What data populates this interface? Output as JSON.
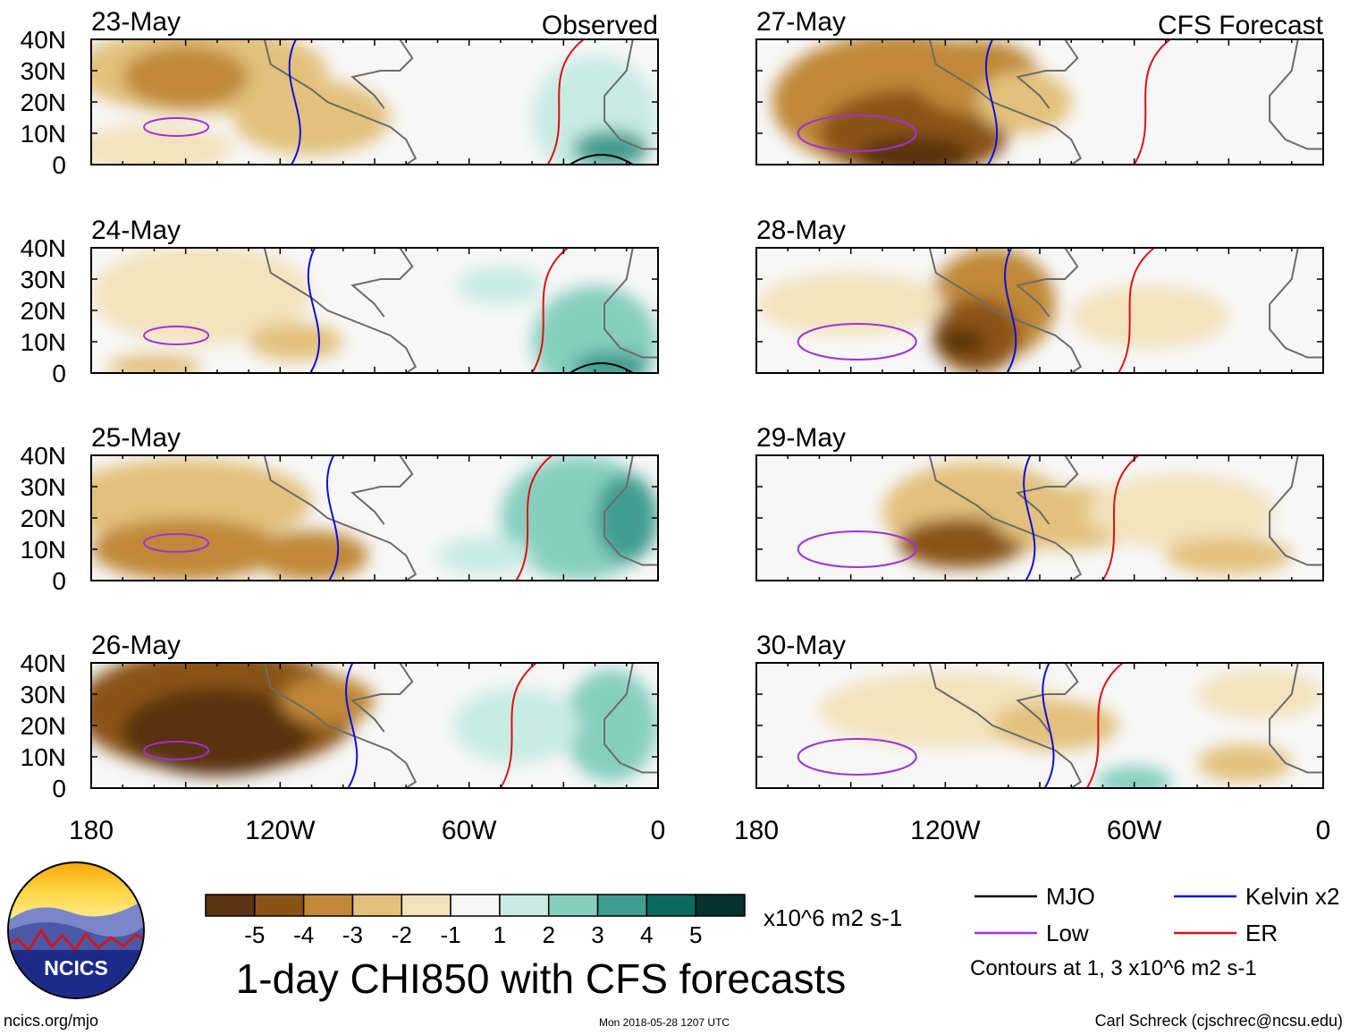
{
  "chart_data": {
    "type": "heatmap",
    "title": "1-day CHI850 with CFS forecasts",
    "units": "x10^6 m2 s-1",
    "contour_note": "Contours at 1, 3 x10^6 m2 s-1",
    "columns": [
      {
        "label": "Observed",
        "panels": [
          "23-May",
          "24-May",
          "25-May",
          "26-May"
        ]
      },
      {
        "label": "CFS Forecast",
        "panels": [
          "27-May",
          "28-May",
          "29-May",
          "30-May"
        ]
      }
    ],
    "y_ticks": [
      "40N",
      "30N",
      "20N",
      "10N",
      "0"
    ],
    "x_ticks": [
      "180",
      "120W",
      "60W",
      "0"
    ],
    "x_range": [
      -180,
      0
    ],
    "y_range": [
      0,
      40
    ],
    "colorbar": {
      "levels": [
        "-5",
        "-4",
        "-3",
        "-2",
        "-1",
        "1",
        "2",
        "3",
        "4",
        "5"
      ],
      "colors": [
        "#5a3310",
        "#8a5316",
        "#c08838",
        "#e2c17c",
        "#f3e2bb",
        "#f7f7f7",
        "#c8ebe2",
        "#86cfbf",
        "#3f9e90",
        "#0b6b60",
        "#04342d"
      ]
    },
    "legend": [
      {
        "label": "MJO",
        "color": "#000000"
      },
      {
        "label": "Kelvin x2",
        "color": "#1010d8"
      },
      {
        "label": "Low",
        "color": "#a030d8"
      },
      {
        "label": "ER",
        "color": "#e01010"
      }
    ]
  },
  "footer": {
    "logo_text": "NCICS",
    "left": "ncics.org/mjo",
    "center": "Mon 2018-05-28 1207 UTC",
    "right": "Carl Schreck (cjschrec@ncsu.edu)"
  }
}
